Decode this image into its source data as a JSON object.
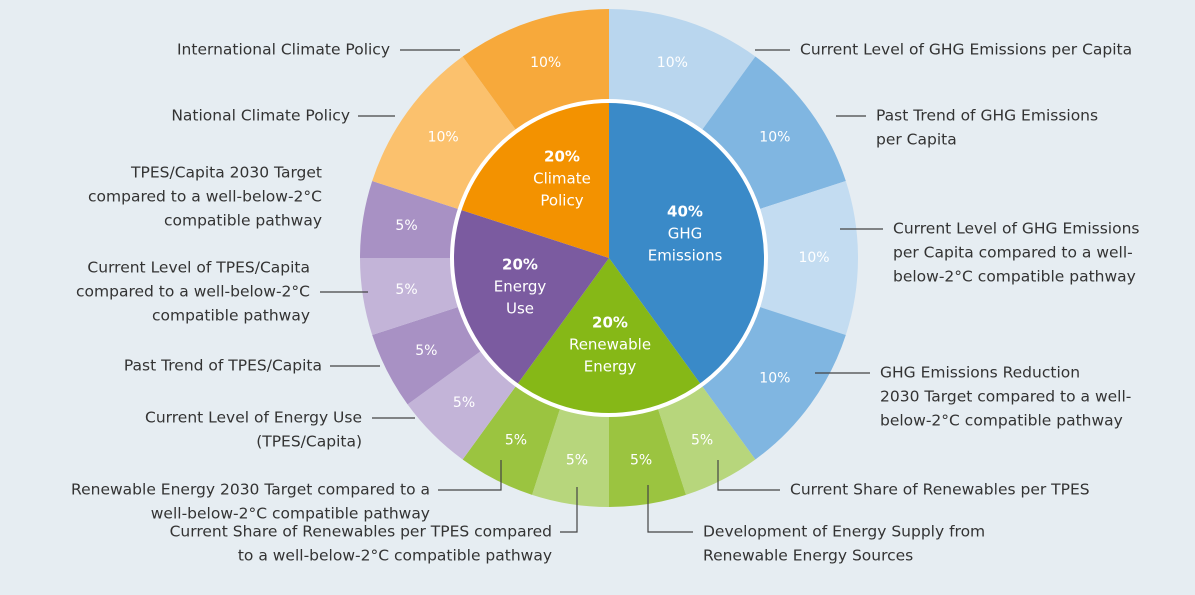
{
  "chart_data": {
    "type": "sunburst",
    "groups": [
      {
        "name": [
          "GHG",
          "Emissions"
        ],
        "value": 40,
        "value_label": "40%",
        "color": "#3a8ac8",
        "children": [
          {
            "label": [
              "Current Level of GHG Emissions per Capita"
            ],
            "value": 10,
            "value_label": "10%",
            "color": "#b9d6ee"
          },
          {
            "label": [
              "Past Trend of GHG Emissions",
              "per Capita"
            ],
            "value": 10,
            "value_label": "10%",
            "color": "#80b6e1"
          },
          {
            "label": [
              "Current Level of GHG Emissions",
              "per Capita compared to a well-",
              "below-2°C compatible pathway"
            ],
            "value": 10,
            "value_label": "10%",
            "color": "#c3dcf1"
          },
          {
            "label": [
              "GHG Emissions Reduction",
              "2030 Target compared to a well-",
              "below-2°C compatible pathway"
            ],
            "value": 10,
            "value_label": "10%",
            "color": "#80b6e1"
          }
        ]
      },
      {
        "name": [
          "Renewable",
          "Energy"
        ],
        "value": 20,
        "value_label": "20%",
        "color": "#86b817",
        "children": [
          {
            "label": [
              "Current Share of Renewables per TPES"
            ],
            "value": 5,
            "value_label": "5%",
            "color": "#b7d67c"
          },
          {
            "label": [
              "Development of Energy Supply from",
              "Renewable Energy Sources"
            ],
            "value": 5,
            "value_label": "5%",
            "color": "#9bc440"
          },
          {
            "label": [
              "Current Share of Renewables per TPES compared",
              "to a well-below-2°C compatible pathway"
            ],
            "value": 5,
            "value_label": "5%",
            "color": "#b7d67c"
          },
          {
            "label": [
              "Renewable Energy 2030 Target compared to a",
              "well-below-2°C compatible pathway"
            ],
            "value": 5,
            "value_label": "5%",
            "color": "#9bc440"
          }
        ]
      },
      {
        "name": [
          "Energy",
          "Use"
        ],
        "value": 20,
        "value_label": "20%",
        "color": "#7b5ba0",
        "children": [
          {
            "label": [
              "Current Level of Energy Use",
              "(TPES/Capita)"
            ],
            "value": 5,
            "value_label": "5%",
            "color": "#c3b4d8"
          },
          {
            "label": [
              "Past Trend of TPES/Capita"
            ],
            "value": 5,
            "value_label": "5%",
            "color": "#a891c4"
          },
          {
            "label": [
              "Current Level of TPES/Capita",
              "compared to a well-below-2°C",
              "compatible pathway"
            ],
            "value": 5,
            "value_label": "5%",
            "color": "#c3b4d8"
          },
          {
            "label": [
              "TPES/Capita 2030 Target",
              "compared to a well-below-2°C",
              "compatible pathway"
            ],
            "value": 5,
            "value_label": "5%",
            "color": "#a891c4"
          }
        ]
      },
      {
        "name": [
          "Climate",
          "Policy"
        ],
        "value": 20,
        "value_label": "20%",
        "color": "#f39200",
        "children": [
          {
            "label": [
              "National Climate Policy"
            ],
            "value": 10,
            "value_label": "10%",
            "color": "#fbc16d"
          },
          {
            "label": [
              "International Climate Policy"
            ],
            "value": 10,
            "value_label": "10%",
            "color": "#f7a93b"
          }
        ]
      }
    ]
  }
}
